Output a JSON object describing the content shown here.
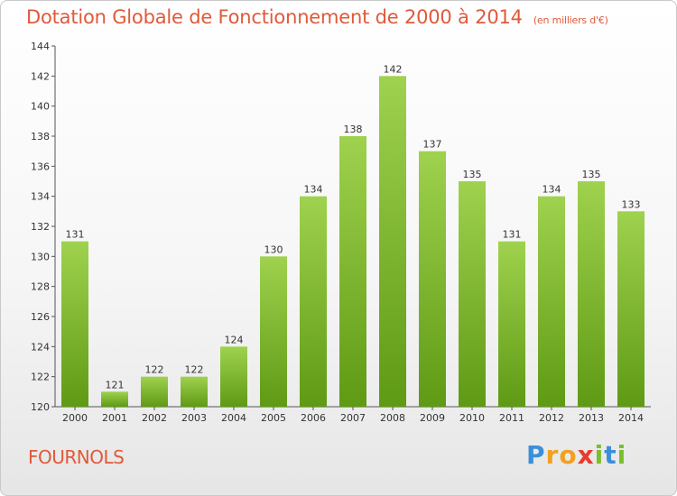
{
  "title": "Dotation Globale de Fonctionnement de 2000 à 2014",
  "unit": "(en milliers d'€)",
  "commune": "FOURNOLS",
  "logo_text": "Proxiti",
  "colors": {
    "accent": "#e0593a",
    "bar_top": "#9fd24e",
    "bar_bottom": "#5f9a14"
  },
  "chart_data": {
    "type": "bar",
    "title": "Dotation Globale de Fonctionnement de 2000 à 2014",
    "categories": [
      "2000",
      "2001",
      "2002",
      "2003",
      "2004",
      "2005",
      "2006",
      "2007",
      "2008",
      "2009",
      "2010",
      "2011",
      "2012",
      "2013",
      "2014"
    ],
    "values": [
      131,
      121,
      122,
      122,
      124,
      130,
      134,
      138,
      142,
      137,
      135,
      131,
      134,
      135,
      133
    ],
    "ylim": [
      120,
      144
    ],
    "yticks": [
      120,
      122,
      124,
      126,
      128,
      130,
      132,
      134,
      136,
      138,
      140,
      142,
      144
    ],
    "grid": false,
    "xlabel": "",
    "ylabel": ""
  }
}
